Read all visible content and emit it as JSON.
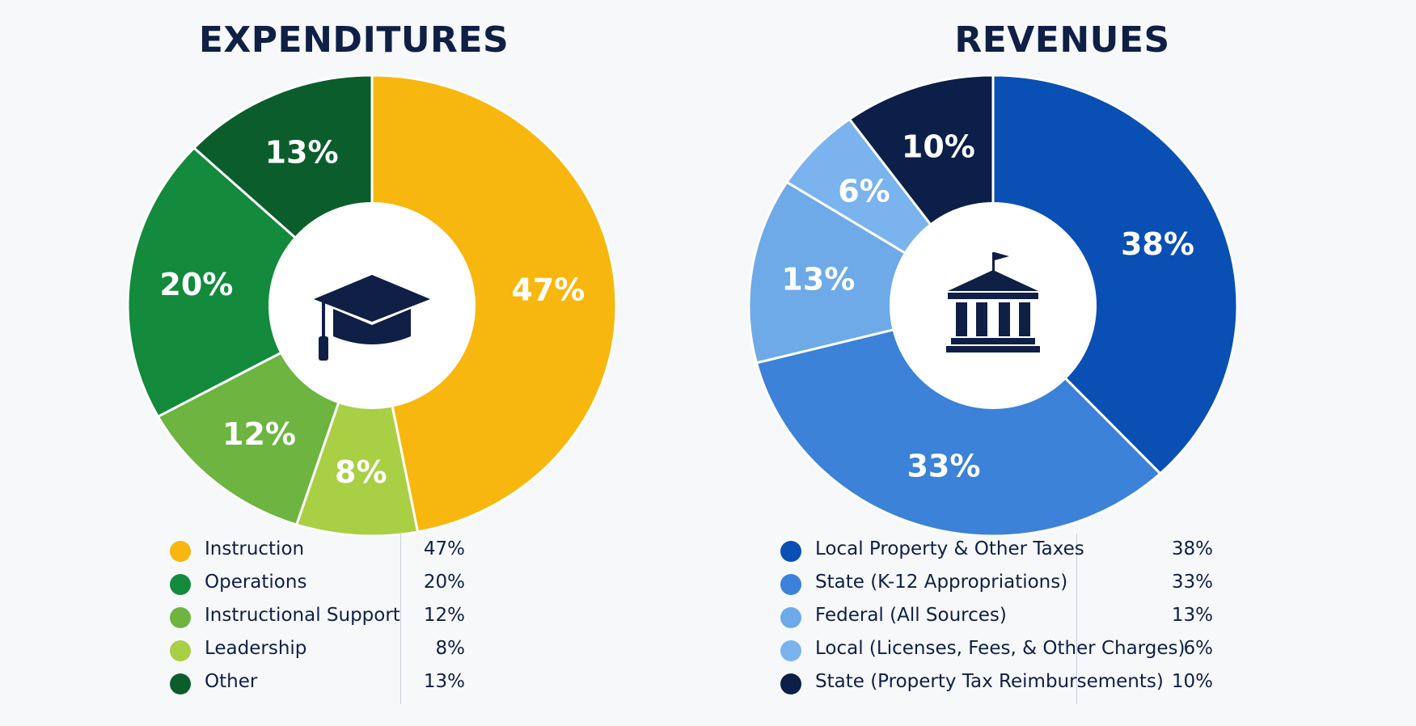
{
  "chart_data": [
    {
      "type": "pie",
      "title": "EXPENDITURES",
      "center_icon": "graduation-cap-icon",
      "slices": [
        {
          "label": "Instruction",
          "value": 47,
          "display": "47%",
          "color": "#f7b70e"
        },
        {
          "label": "Leadership",
          "value": 8,
          "display": "8%",
          "color": "#a9cf45"
        },
        {
          "label": "Instructional Support",
          "value": 12,
          "display": "12%",
          "color": "#6db441"
        },
        {
          "label": "Operations",
          "value": 20,
          "display": "20%",
          "color": "#138a3c"
        },
        {
          "label": "Other",
          "value": 13,
          "display": "13%",
          "color": "#0b5e2c"
        }
      ],
      "legend": [
        {
          "label": "Instruction",
          "display": "47%",
          "color": "#f7b70e"
        },
        {
          "label": "Operations",
          "display": "20%",
          "color": "#138a3c"
        },
        {
          "label": "Instructional Support",
          "display": "12%",
          "color": "#6db441"
        },
        {
          "label": "Leadership",
          "display": "8%",
          "color": "#a9cf45"
        },
        {
          "label": "Other",
          "display": "13%",
          "color": "#0b5e2c"
        }
      ]
    },
    {
      "type": "pie",
      "title": "REVENUES",
      "center_icon": "government-building-icon",
      "slices": [
        {
          "label": "Local Property & Other Taxes",
          "value": 38,
          "display": "38%",
          "color": "#0a4fb4"
        },
        {
          "label": "State (K-12 Appropriations)",
          "value": 33,
          "display": "33%",
          "color": "#3b82d8"
        },
        {
          "label": "Federal (All Sources)",
          "value": 13,
          "display": "13%",
          "color": "#6eaae8"
        },
        {
          "label": "Local (Licenses, Fees, & Other Charges)",
          "value": 6,
          "display": "6%",
          "color": "#7ab3ee"
        },
        {
          "label": "State (Property Tax Reimbursements)",
          "value": 10,
          "display": "10%",
          "color": "#0c1f48"
        }
      ],
      "legend": [
        {
          "label": "Local Property & Other Taxes",
          "display": "38%",
          "color": "#0a4fb4"
        },
        {
          "label": "State (K-12 Appropriations)",
          "display": "33%",
          "color": "#3b82d8"
        },
        {
          "label": "Federal (All Sources)",
          "display": "13%",
          "color": "#6eaae8"
        },
        {
          "label": "Local (Licenses, Fees, & Other Charges)",
          "display": "6%",
          "color": "#7ab3ee"
        },
        {
          "label": "State (Property Tax Reimbursements)",
          "display": "10%",
          "color": "#0c1f48"
        }
      ]
    }
  ]
}
